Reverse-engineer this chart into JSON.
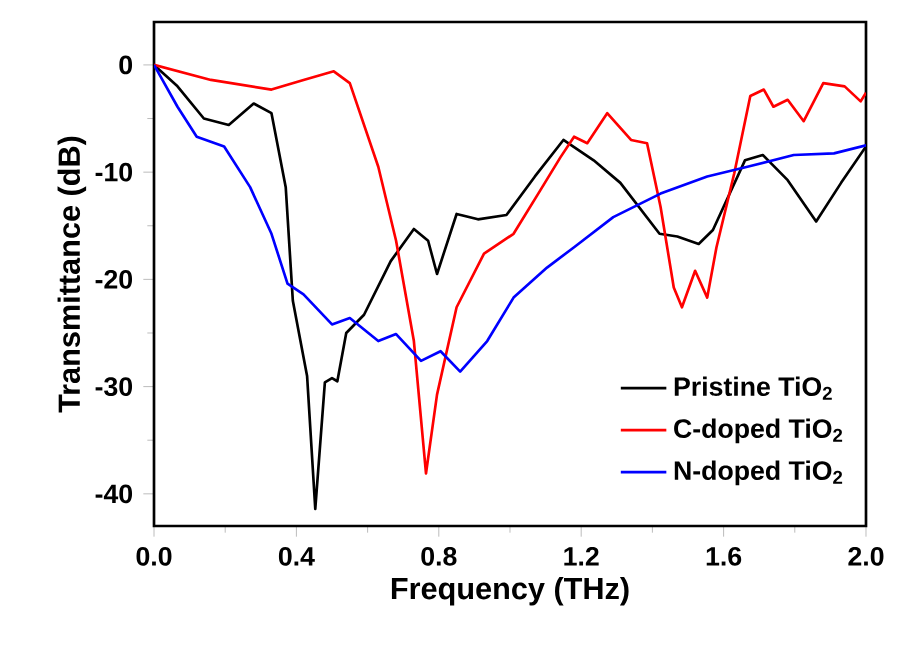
{
  "chart_data": {
    "type": "line",
    "xlabel": "Frequency (THz)",
    "ylabel": "Transmittance (dB)",
    "xlim": [
      0,
      2
    ],
    "ylim": [
      -43,
      4
    ],
    "xticks": [
      {
        "value": 0,
        "label": "0.0"
      },
      {
        "value": 0.4,
        "label": "0.4"
      },
      {
        "value": 0.8,
        "label": "0.8"
      },
      {
        "value": 1.2,
        "label": "1.2"
      },
      {
        "value": 1.6,
        "label": "1.6"
      },
      {
        "value": 2,
        "label": "2.0"
      }
    ],
    "yticks": [
      -40,
      -30,
      -20,
      -10,
      0
    ],
    "legend": "bottom right",
    "line_style": "solid",
    "series": [
      {
        "name": "Pristine TiO$_{2}$",
        "color": "#000000",
        "x": [
          0,
          0.066,
          0.14,
          0.21,
          0.28,
          0.33,
          0.37,
          0.39,
          0.43,
          0.453,
          0.48,
          0.5,
          0.515,
          0.54,
          0.59,
          0.665,
          0.73,
          0.77,
          0.795,
          0.85,
          0.91,
          0.99,
          1.07,
          1.15,
          1.235,
          1.31,
          1.42,
          1.47,
          1.53,
          1.57,
          1.66,
          1.71,
          1.78,
          1.86,
          1.93,
          2.0
        ],
        "values": [
          0,
          -2,
          -5,
          -5.6,
          -3.6,
          -4.5,
          -11.4,
          -22,
          -29,
          -41.4,
          -29.6,
          -29.2,
          -29.5,
          -25,
          -23.3,
          -18.3,
          -15.3,
          -16.4,
          -19.5,
          -13.9,
          -14.4,
          -14,
          -10.4,
          -7,
          -8.9,
          -11,
          -15.75,
          -16,
          -16.7,
          -15.4,
          -8.9,
          -8.4,
          -10.75,
          -14.6,
          -11,
          -7.6
        ]
      },
      {
        "name": "C-doped TiO$_{2}$",
        "color": "#ff0000",
        "x": [
          0,
          0.16,
          0.33,
          0.42,
          0.505,
          0.55,
          0.63,
          0.68,
          0.73,
          0.764,
          0.795,
          0.85,
          0.927,
          1.01,
          1.085,
          1.142,
          1.18,
          1.217,
          1.273,
          1.34,
          1.385,
          1.423,
          1.46,
          1.483,
          1.52,
          1.554,
          1.58,
          1.63,
          1.675,
          1.713,
          1.74,
          1.78,
          1.825,
          1.88,
          1.94,
          1.985,
          2.0
        ],
        "values": [
          0,
          -1.4,
          -2.3,
          -1.4,
          -0.6,
          -1.7,
          -9.5,
          -16.4,
          -25.75,
          -38.1,
          -30.75,
          -22.6,
          -17.6,
          -15.75,
          -11.7,
          -8.6,
          -6.7,
          -7.3,
          -4.5,
          -7,
          -7.3,
          -13.25,
          -20.75,
          -22.6,
          -19.2,
          -21.7,
          -17,
          -10.1,
          -2.9,
          -2.3,
          -3.9,
          -3.25,
          -5.25,
          -1.7,
          -2,
          -3.4,
          -2.6
        ]
      },
      {
        "name": "N-doped TiO$_{2}$",
        "color": "#0000ff",
        "x": [
          0,
          0.066,
          0.12,
          0.197,
          0.27,
          0.33,
          0.375,
          0.42,
          0.5,
          0.55,
          0.63,
          0.68,
          0.75,
          0.805,
          0.86,
          0.936,
          1.01,
          1.104,
          1.18,
          1.29,
          1.423,
          1.554,
          1.667,
          1.797,
          1.91,
          2.0
        ],
        "values": [
          0,
          -3.9,
          -6.7,
          -7.6,
          -11.4,
          -15.75,
          -20.4,
          -21.4,
          -24.2,
          -23.6,
          -25.75,
          -25.1,
          -27.6,
          -26.7,
          -28.6,
          -25.75,
          -21.7,
          -18.9,
          -17,
          -14.2,
          -12,
          -10.4,
          -9.5,
          -8.4,
          -8.25,
          -7.5
        ]
      }
    ]
  }
}
